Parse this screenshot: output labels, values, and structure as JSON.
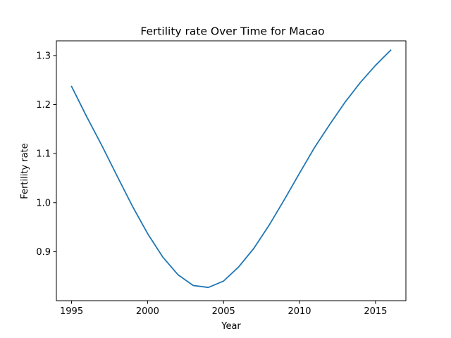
{
  "chart_data": {
    "type": "line",
    "title": "Fertility rate Over Time for Macao",
    "xlabel": "Year",
    "ylabel": "Fertility rate",
    "xlim": [
      1994,
      2017
    ],
    "ylim": [
      0.8,
      1.33
    ],
    "xticks": [
      1995,
      2000,
      2005,
      2010,
      2015
    ],
    "yticks": [
      0.9,
      1.0,
      1.1,
      1.2,
      1.3
    ],
    "xtick_labels": [
      "1995",
      "2000",
      "2005",
      "2010",
      "2015"
    ],
    "ytick_labels": [
      "0.9",
      "1.0",
      "1.1",
      "1.2",
      "1.3"
    ],
    "grid": false,
    "series": [
      {
        "color": "#1f77b4",
        "x": [
          1995,
          1996,
          1997,
          1998,
          1999,
          2000,
          2001,
          2002,
          2003,
          2004,
          2005,
          2006,
          2007,
          2008,
          2009,
          2010,
          2011,
          2012,
          2013,
          2014,
          2015,
          2016
        ],
        "y": [
          1.237,
          1.175,
          1.116,
          1.054,
          0.993,
          0.937,
          0.889,
          0.853,
          0.831,
          0.827,
          0.84,
          0.869,
          0.907,
          0.954,
          1.006,
          1.06,
          1.113,
          1.16,
          1.205,
          1.245,
          1.28,
          1.311
        ]
      }
    ]
  }
}
